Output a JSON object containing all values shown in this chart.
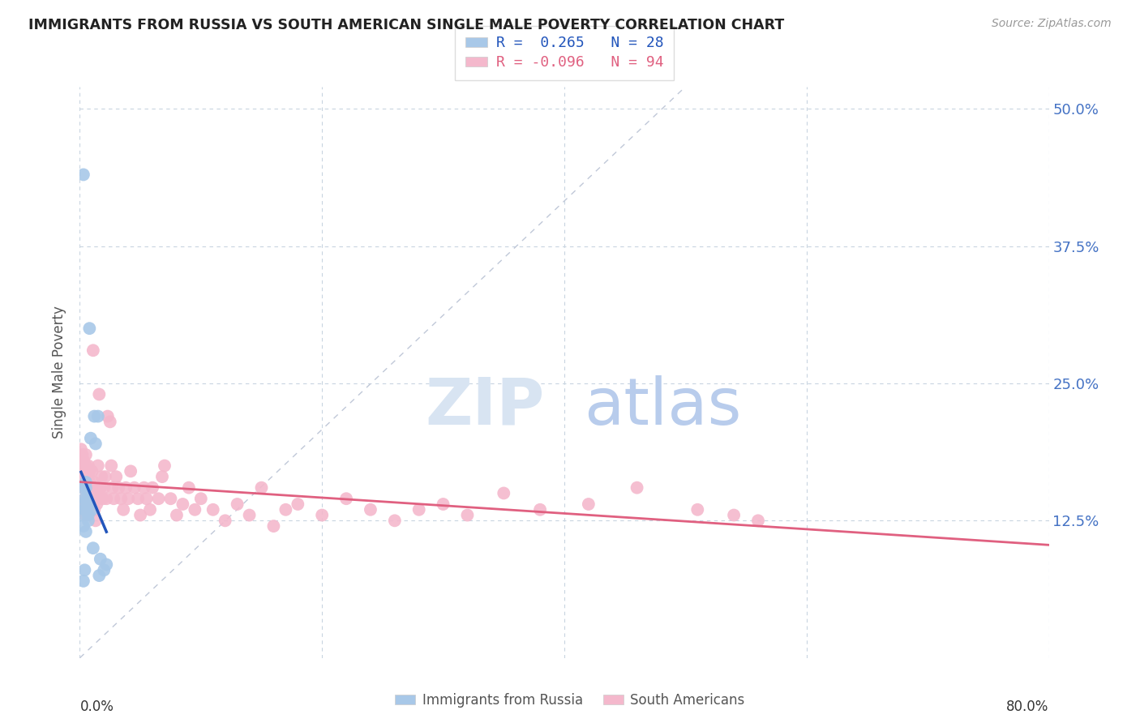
{
  "title": "IMMIGRANTS FROM RUSSIA VS SOUTH AMERICAN SINGLE MALE POVERTY CORRELATION CHART",
  "source": "Source: ZipAtlas.com",
  "ylabel": "Single Male Poverty",
  "russia_color": "#a8c8e8",
  "south_color": "#f4b8cc",
  "russia_line_color": "#2255bb",
  "south_line_color": "#e06080",
  "diag_line_color": "#c0c8d8",
  "xlim": [
    0.0,
    0.8
  ],
  "ylim": [
    0.0,
    0.52
  ],
  "yticks": [
    0.125,
    0.25,
    0.375,
    0.5
  ],
  "ytick_labels": [
    "12.5%",
    "25.0%",
    "37.5%",
    "50.0%"
  ],
  "legend_text1": "R =  0.265   N = 28",
  "legend_text2": "R = -0.096   N = 94",
  "russia_x": [
    0.001,
    0.002,
    0.002,
    0.003,
    0.003,
    0.004,
    0.004,
    0.004,
    0.005,
    0.005,
    0.005,
    0.006,
    0.006,
    0.007,
    0.007,
    0.008,
    0.008,
    0.009,
    0.01,
    0.011,
    0.012,
    0.013,
    0.015,
    0.016,
    0.017,
    0.02,
    0.022,
    0.003
  ],
  "russia_y": [
    0.13,
    0.14,
    0.155,
    0.44,
    0.12,
    0.135,
    0.145,
    0.08,
    0.155,
    0.16,
    0.115,
    0.135,
    0.145,
    0.13,
    0.125,
    0.14,
    0.3,
    0.2,
    0.135,
    0.1,
    0.22,
    0.195,
    0.22,
    0.075,
    0.09,
    0.08,
    0.085,
    0.07
  ],
  "south_x": [
    0.001,
    0.001,
    0.002,
    0.002,
    0.002,
    0.003,
    0.003,
    0.003,
    0.004,
    0.004,
    0.004,
    0.005,
    0.005,
    0.005,
    0.005,
    0.006,
    0.006,
    0.006,
    0.007,
    0.007,
    0.007,
    0.008,
    0.008,
    0.008,
    0.009,
    0.009,
    0.01,
    0.01,
    0.011,
    0.011,
    0.012,
    0.012,
    0.013,
    0.013,
    0.014,
    0.015,
    0.015,
    0.016,
    0.017,
    0.018,
    0.019,
    0.02,
    0.021,
    0.022,
    0.023,
    0.025,
    0.026,
    0.027,
    0.028,
    0.03,
    0.032,
    0.034,
    0.036,
    0.038,
    0.04,
    0.042,
    0.045,
    0.048,
    0.05,
    0.053,
    0.055,
    0.058,
    0.06,
    0.065,
    0.068,
    0.07,
    0.075,
    0.08,
    0.085,
    0.09,
    0.095,
    0.1,
    0.11,
    0.12,
    0.13,
    0.14,
    0.15,
    0.16,
    0.17,
    0.18,
    0.2,
    0.22,
    0.24,
    0.26,
    0.28,
    0.3,
    0.32,
    0.35,
    0.38,
    0.42,
    0.46,
    0.51,
    0.54,
    0.56
  ],
  "south_y": [
    0.175,
    0.19,
    0.17,
    0.185,
    0.14,
    0.17,
    0.18,
    0.155,
    0.175,
    0.165,
    0.145,
    0.16,
    0.175,
    0.185,
    0.13,
    0.17,
    0.155,
    0.14,
    0.165,
    0.175,
    0.145,
    0.16,
    0.17,
    0.14,
    0.155,
    0.135,
    0.17,
    0.145,
    0.28,
    0.155,
    0.16,
    0.135,
    0.15,
    0.125,
    0.14,
    0.175,
    0.145,
    0.24,
    0.155,
    0.165,
    0.145,
    0.155,
    0.165,
    0.145,
    0.22,
    0.215,
    0.175,
    0.155,
    0.145,
    0.165,
    0.155,
    0.145,
    0.135,
    0.155,
    0.145,
    0.17,
    0.155,
    0.145,
    0.13,
    0.155,
    0.145,
    0.135,
    0.155,
    0.145,
    0.165,
    0.175,
    0.145,
    0.13,
    0.14,
    0.155,
    0.135,
    0.145,
    0.135,
    0.125,
    0.14,
    0.13,
    0.155,
    0.12,
    0.135,
    0.14,
    0.13,
    0.145,
    0.135,
    0.125,
    0.135,
    0.14,
    0.13,
    0.15,
    0.135,
    0.14,
    0.155,
    0.135,
    0.13,
    0.125
  ]
}
